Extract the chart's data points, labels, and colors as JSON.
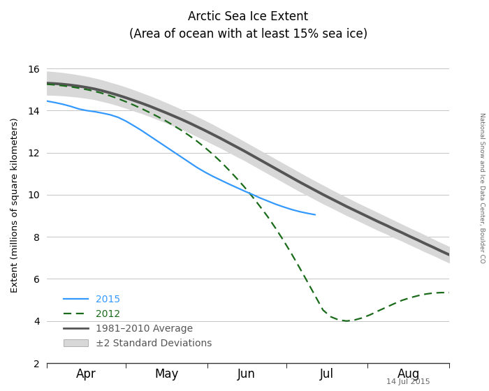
{
  "title_line1": "Arctic Sea Ice Extent",
  "title_line2": "(Area of ocean with at least 15% sea ice)",
  "ylabel": "Extent (millions of square kilometers)",
  "watermark": "National Snow and Ice Data Center, Boulder CO",
  "date_label": "14 Jul 2015",
  "ylim": [
    2,
    17
  ],
  "yticks": [
    2,
    4,
    6,
    8,
    10,
    12,
    14,
    16
  ],
  "bg_color": "#ffffff",
  "avg_color": "#555555",
  "shade_color": "#d8d8d8",
  "color_2015": "#3399ff",
  "color_2012": "#1a6b1a",
  "legend_labels": [
    "2015",
    "2012",
    "1981–2010 Average",
    "±2 Standard Deviations"
  ],
  "avg_x": [
    0,
    3,
    6,
    9,
    12,
    15,
    18,
    21,
    24,
    27,
    30,
    33,
    36,
    39,
    42,
    45,
    48,
    51,
    54,
    57,
    60,
    63,
    66,
    69,
    72,
    75,
    78,
    81,
    84,
    87,
    90,
    93,
    96,
    99,
    102,
    105,
    108,
    111,
    114,
    117,
    120,
    123,
    126,
    129,
    132,
    135,
    138,
    141,
    144,
    147,
    150,
    153
  ],
  "avg_y": [
    15.3,
    15.28,
    15.25,
    15.21,
    15.16,
    15.1,
    15.03,
    14.94,
    14.84,
    14.73,
    14.61,
    14.48,
    14.35,
    14.21,
    14.06,
    13.91,
    13.75,
    13.59,
    13.42,
    13.24,
    13.06,
    12.87,
    12.68,
    12.48,
    12.28,
    12.08,
    11.87,
    11.66,
    11.45,
    11.24,
    11.03,
    10.82,
    10.61,
    10.41,
    10.21,
    10.01,
    9.82,
    9.63,
    9.44,
    9.26,
    9.08,
    8.9,
    8.72,
    8.55,
    8.37,
    8.2,
    8.02,
    7.85,
    7.67,
    7.5,
    7.32,
    7.15
  ],
  "std_upper": [
    15.85,
    15.82,
    15.78,
    15.73,
    15.67,
    15.6,
    15.52,
    15.43,
    15.32,
    15.21,
    15.09,
    14.96,
    14.82,
    14.68,
    14.53,
    14.37,
    14.21,
    14.04,
    13.87,
    13.69,
    13.51,
    13.32,
    13.12,
    12.92,
    12.72,
    12.51,
    12.3,
    12.09,
    11.88,
    11.67,
    11.46,
    11.25,
    11.04,
    10.83,
    10.63,
    10.43,
    10.23,
    10.04,
    9.85,
    9.66,
    9.48,
    9.3,
    9.12,
    8.94,
    8.76,
    8.58,
    8.4,
    8.23,
    8.05,
    7.87,
    7.69,
    7.52
  ],
  "std_lower": [
    14.75,
    14.74,
    14.72,
    14.69,
    14.65,
    14.6,
    14.54,
    14.45,
    14.36,
    14.25,
    14.13,
    14.0,
    13.88,
    13.74,
    13.59,
    13.45,
    13.29,
    13.14,
    12.97,
    12.79,
    12.61,
    12.42,
    12.24,
    12.04,
    11.84,
    11.65,
    11.44,
    11.23,
    11.02,
    10.81,
    10.6,
    10.39,
    10.18,
    9.99,
    9.79,
    9.59,
    9.41,
    9.22,
    9.03,
    8.86,
    8.68,
    8.5,
    8.32,
    8.16,
    7.98,
    7.82,
    7.64,
    7.47,
    7.29,
    7.13,
    6.95,
    6.78
  ],
  "x2015": [
    0,
    3,
    6,
    9,
    12,
    15,
    18,
    21,
    24,
    27,
    30,
    33,
    36,
    39,
    42,
    45,
    48,
    51,
    54,
    57,
    60,
    63,
    66,
    69,
    72,
    75,
    78,
    81,
    84,
    87,
    90,
    93,
    96,
    99,
    102
  ],
  "y2015": [
    14.45,
    14.38,
    14.3,
    14.2,
    14.08,
    14.0,
    13.95,
    13.88,
    13.8,
    13.68,
    13.5,
    13.28,
    13.05,
    12.8,
    12.55,
    12.3,
    12.05,
    11.8,
    11.55,
    11.3,
    11.08,
    10.88,
    10.7,
    10.52,
    10.35,
    10.18,
    10.02,
    9.85,
    9.7,
    9.55,
    9.42,
    9.3,
    9.2,
    9.12,
    9.05
  ],
  "x2012": [
    0,
    3,
    6,
    9,
    12,
    15,
    18,
    21,
    24,
    27,
    30,
    33,
    36,
    39,
    42,
    45,
    48,
    51,
    54,
    57,
    60,
    63,
    66,
    69,
    72,
    75,
    78,
    81,
    84,
    87,
    90,
    93,
    96,
    99,
    102,
    105,
    108,
    111,
    114,
    117,
    120,
    123,
    126,
    129,
    132,
    135,
    138,
    141,
    144,
    147,
    150,
    153
  ],
  "y2012": [
    15.25,
    15.22,
    15.18,
    15.13,
    15.07,
    15.0,
    14.92,
    14.82,
    14.7,
    14.57,
    14.42,
    14.26,
    14.09,
    13.91,
    13.72,
    13.52,
    13.3,
    13.07,
    12.82,
    12.55,
    12.25,
    11.93,
    11.58,
    11.2,
    10.8,
    10.38,
    9.93,
    9.45,
    8.95,
    8.4,
    7.82,
    7.2,
    6.55,
    5.88,
    5.2,
    4.52,
    4.2,
    4.05,
    4.0,
    4.05,
    4.15,
    4.3,
    4.48,
    4.65,
    4.82,
    4.98,
    5.1,
    5.2,
    5.28,
    5.33,
    5.35,
    5.35
  ]
}
